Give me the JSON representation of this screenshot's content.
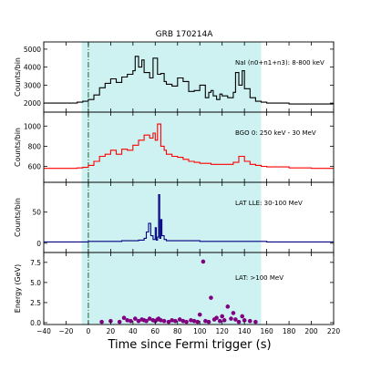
{
  "chart_data": {
    "type": "line",
    "title": "GRB 170214A",
    "xlabel": "Time since Fermi trigger (s)",
    "xlim": [
      -40,
      220
    ],
    "x_ticks": [
      -40,
      -20,
      0,
      20,
      40,
      60,
      80,
      100,
      120,
      140,
      160,
      180,
      200,
      220
    ],
    "shaded_interval": [
      -6,
      155
    ],
    "dashed_line_x": 0,
    "panels": [
      {
        "label": "NaI (n0+n1+n3): 8-800 keV",
        "ylabel": "Counts/bin",
        "ylim": [
          1600,
          5300
        ],
        "yticks": [
          2000,
          3000,
          4000,
          5000
        ],
        "color": "#000000",
        "series": {
          "x": [
            -40,
            -20,
            -10,
            -5,
            0,
            5,
            10,
            15,
            20,
            25,
            30,
            35,
            40,
            42,
            45,
            48,
            50,
            55,
            58,
            62,
            65,
            68,
            70,
            75,
            80,
            85,
            90,
            95,
            100,
            105,
            108,
            110,
            112,
            115,
            118,
            120,
            125,
            130,
            132,
            135,
            138,
            140,
            145,
            150,
            155,
            160,
            180,
            200,
            220
          ],
          "values": [
            2000,
            2000,
            2050,
            2100,
            2200,
            2450,
            2850,
            3100,
            3350,
            3150,
            3450,
            3600,
            3800,
            4600,
            4000,
            4400,
            3700,
            3400,
            4500,
            3600,
            3650,
            3200,
            3050,
            2950,
            3400,
            3200,
            2650,
            2700,
            3000,
            2300,
            2600,
            2700,
            2400,
            2200,
            2500,
            2400,
            2300,
            2600,
            3700,
            3000,
            3800,
            2800,
            2300,
            2100,
            2050,
            2000,
            1950,
            1950,
            1950
          ]
        }
      },
      {
        "label": "BGO 0: 250 keV - 30 MeV",
        "ylabel": "Counts/bin",
        "ylim": [
          460,
          1120
        ],
        "yticks": [
          600,
          800,
          1000
        ],
        "color": "#ff0000",
        "series": {
          "x": [
            -40,
            -20,
            -10,
            -5,
            0,
            5,
            10,
            15,
            20,
            25,
            30,
            35,
            40,
            45,
            50,
            55,
            58,
            60,
            62,
            65,
            68,
            70,
            75,
            80,
            85,
            90,
            95,
            100,
            110,
            120,
            130,
            135,
            140,
            145,
            150,
            155,
            160,
            180,
            200,
            220
          ],
          "values": [
            580,
            580,
            585,
            590,
            610,
            650,
            700,
            720,
            760,
            720,
            770,
            760,
            810,
            860,
            910,
            880,
            930,
            860,
            1020,
            800,
            760,
            720,
            700,
            690,
            670,
            650,
            640,
            630,
            620,
            620,
            640,
            700,
            650,
            620,
            610,
            600,
            595,
            585,
            580,
            580
          ]
        }
      },
      {
        "label": "LAT LLE: 30-100 MeV",
        "ylabel": "Counts/bin",
        "ylim": [
          -12,
          95
        ],
        "yticks": [
          0,
          50
        ],
        "color": "#000080",
        "series": {
          "x": [
            -40,
            -20,
            0,
            20,
            30,
            40,
            45,
            50,
            52,
            54,
            56,
            58,
            60,
            61,
            62,
            63,
            64,
            65,
            66,
            68,
            70,
            80,
            100,
            120,
            140,
            160,
            180,
            200,
            220
          ],
          "values": [
            2,
            2,
            3,
            3,
            4,
            4,
            5,
            8,
            18,
            32,
            12,
            6,
            25,
            5,
            10,
            78,
            8,
            38,
            12,
            6,
            4,
            4,
            3,
            3,
            3,
            2,
            2,
            2,
            2
          ]
        }
      },
      {
        "label": "LAT: >100 MeV",
        "ylabel": "Energy (GeV)",
        "ylim": [
          0,
          8.5
        ],
        "yticks": [
          0.0,
          2.5,
          5.0,
          7.5
        ],
        "ytick_labels": [
          "0.0",
          "2.5",
          "5.0",
          "7.5"
        ],
        "color": "#800080",
        "points": {
          "x": [
            12,
            20,
            28,
            32,
            35,
            38,
            42,
            45,
            48,
            50,
            52,
            55,
            58,
            60,
            62,
            63,
            65,
            68,
            72,
            75,
            78,
            82,
            85,
            88,
            92,
            95,
            98,
            100,
            103,
            105,
            108,
            110,
            113,
            115,
            118,
            120,
            122,
            125,
            128,
            130,
            132,
            135,
            138,
            140,
            145,
            150
          ],
          "y": [
            0.1,
            0.2,
            0.1,
            0.6,
            0.3,
            0.2,
            0.5,
            0.2,
            0.4,
            0.3,
            0.2,
            0.5,
            0.3,
            0.2,
            0.4,
            0.5,
            0.3,
            0.2,
            0.1,
            0.3,
            0.2,
            0.4,
            0.2,
            0.1,
            0.3,
            0.2,
            0.1,
            1.0,
            7.6,
            0.2,
            0.1,
            3.1,
            0.4,
            0.6,
            0.2,
            0.8,
            0.3,
            2.0,
            0.5,
            1.2,
            0.4,
            0.1,
            0.8,
            0.3,
            0.2,
            0.1
          ]
        }
      }
    ]
  }
}
